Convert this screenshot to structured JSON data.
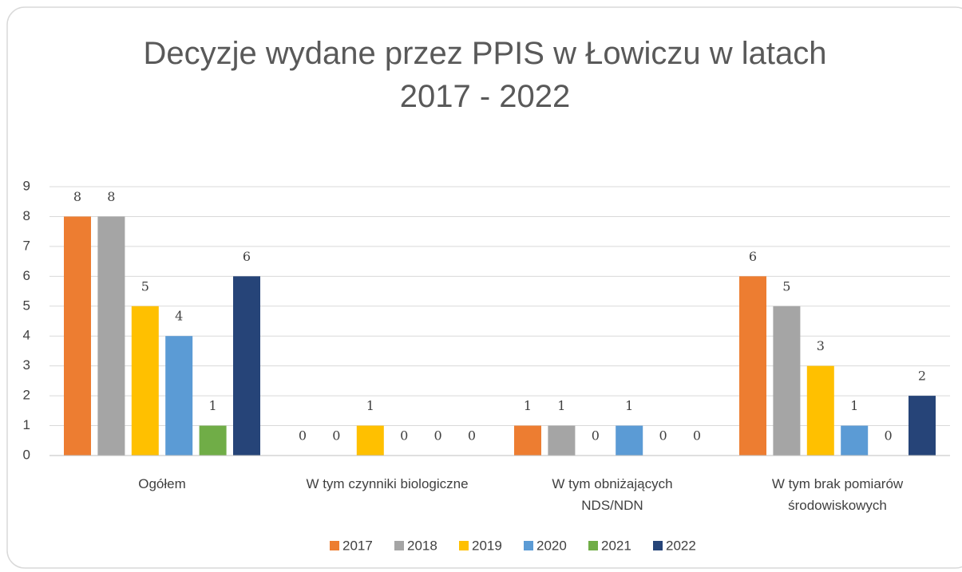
{
  "chart_data": {
    "type": "bar",
    "title": "Decyzje wydane przez PPIS w Łowiczu w latach\n2017 - 2022",
    "categories": [
      "Ogółem",
      "W tym czynniki biologiczne",
      "W tym obniżających\nNDS/NDN",
      "W tym brak pomiarów\nśrodowiskowych"
    ],
    "series": [
      {
        "name": "2017",
        "color": "#ed7d31",
        "values": [
          8,
          0,
          1,
          6
        ]
      },
      {
        "name": "2018",
        "color": "#a5a5a5",
        "values": [
          8,
          0,
          1,
          5
        ]
      },
      {
        "name": "2019",
        "color": "#ffc000",
        "values": [
          5,
          1,
          0,
          3
        ]
      },
      {
        "name": "2020",
        "color": "#5b9bd5",
        "values": [
          4,
          0,
          1,
          1
        ]
      },
      {
        "name": "2021",
        "color": "#70ad47",
        "values": [
          1,
          0,
          0,
          0
        ]
      },
      {
        "name": "2022",
        "color": "#264478",
        "values": [
          6,
          0,
          0,
          2
        ]
      }
    ],
    "ylim": [
      0,
      9
    ],
    "yticks": [
      0,
      1,
      2,
      3,
      4,
      5,
      6,
      7,
      8,
      9
    ],
    "grid": true,
    "legend": "bottom"
  }
}
